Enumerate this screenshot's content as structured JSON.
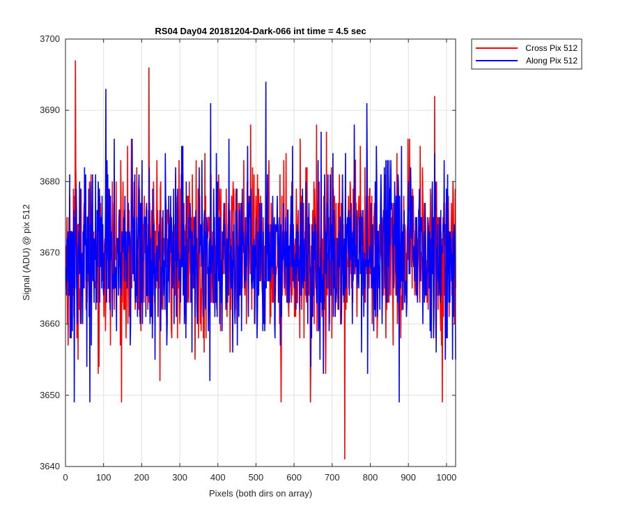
{
  "chart_data": {
    "type": "line",
    "title": "RS04 Day04 20181204-Dark-066 int time = 4.5 sec",
    "xlabel": "Pixels (both dirs on array)",
    "ylabel": "Signal (ADU) @ pix 512",
    "xlim": [
      0,
      1024
    ],
    "ylim": [
      3640,
      3700
    ],
    "xticks": [
      0,
      100,
      200,
      300,
      400,
      500,
      600,
      700,
      800,
      900,
      1000
    ],
    "yticks": [
      3640,
      3650,
      3660,
      3670,
      3680,
      3690,
      3700
    ],
    "grid": true,
    "legend_position": "outside-top-right",
    "series": [
      {
        "name": "Cross Pix 512",
        "color": "#ff0000",
        "n_points": 1024,
        "mean": 3670,
        "std": 6.0,
        "clip": [
          3641,
          3697
        ],
        "extremes": [
          {
            "x": 25,
            "y": 3697
          },
          {
            "x": 218,
            "y": 3696
          },
          {
            "x": 732,
            "y": 3641
          },
          {
            "x": 988,
            "y": 3649
          },
          {
            "x": 968,
            "y": 3692
          },
          {
            "x": 642,
            "y": 3649
          },
          {
            "x": 565,
            "y": 3649
          }
        ]
      },
      {
        "name": "Along Pix 512",
        "color": "#0000ff",
        "n_points": 1024,
        "mean": 3670,
        "std": 6.0,
        "clip": [
          3649,
          3694
        ],
        "extremes": [
          {
            "x": 105,
            "y": 3693
          },
          {
            "x": 525,
            "y": 3694
          },
          {
            "x": 22,
            "y": 3649
          },
          {
            "x": 63,
            "y": 3649
          },
          {
            "x": 875,
            "y": 3649
          },
          {
            "x": 380,
            "y": 3691
          },
          {
            "x": 790,
            "y": 3691
          }
        ]
      }
    ]
  }
}
